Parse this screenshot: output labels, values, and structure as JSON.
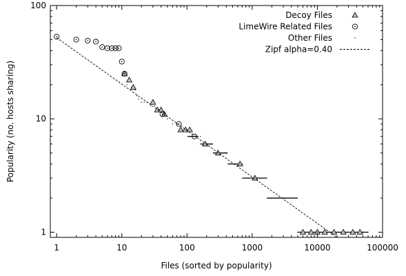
{
  "chart_data": {
    "type": "scatter",
    "xscale": "log",
    "yscale": "log",
    "xlim": [
      0.8,
      100000
    ],
    "ylim": [
      0.9,
      100
    ],
    "xlabel": "Files (sorted by popularity)",
    "ylabel": "Popularity (no. hosts sharing)",
    "x_ticks": [
      {
        "value": 1,
        "label": "1"
      },
      {
        "value": 10,
        "label": "10"
      },
      {
        "value": 100,
        "label": "100"
      },
      {
        "value": 1000,
        "label": "1000"
      },
      {
        "value": 10000,
        "label": "10000"
      },
      {
        "value": 100000,
        "label": "100000"
      }
    ],
    "y_ticks": [
      {
        "value": 1,
        "label": "1"
      },
      {
        "value": 10,
        "label": "10"
      },
      {
        "value": 100,
        "label": "100"
      }
    ],
    "legend_position": "top-right",
    "series": [
      {
        "name": "Decoy Files",
        "marker": "triangle",
        "x": [
          11,
          13,
          15,
          30,
          35,
          40,
          45,
          80,
          95,
          110,
          190,
          300,
          650,
          1100,
          6000,
          8000,
          10000,
          13000,
          18000,
          25000,
          35000,
          45000
        ],
        "y": [
          25,
          22,
          19,
          14,
          12,
          12,
          11,
          8,
          8,
          8,
          6,
          5,
          4,
          3,
          1,
          1,
          1,
          1,
          1,
          1,
          1,
          1
        ]
      },
      {
        "name": "LimeWire Related Files",
        "marker": "circle",
        "x": [
          1,
          2,
          3,
          4,
          5,
          6,
          7,
          8,
          9,
          10,
          11,
          42,
          75,
          130
        ],
        "y": [
          53,
          50,
          49,
          48,
          43,
          42,
          42,
          42,
          42,
          32,
          25,
          11,
          9,
          7
        ]
      },
      {
        "name": "Other Files",
        "marker": "dot",
        "x": [
          12,
          14,
          16,
          17,
          18,
          20,
          22,
          25,
          28,
          32,
          38,
          50,
          60,
          70,
          85,
          100,
          120,
          140,
          160,
          180,
          200,
          230,
          260,
          300,
          350,
          400,
          450,
          500,
          550,
          620,
          700,
          800,
          900,
          1000,
          1200,
          1400,
          1700,
          2000,
          2500,
          3000,
          5000,
          7000,
          10000,
          15000,
          20000,
          30000,
          40000,
          50000,
          60000
        ],
        "y": [
          20,
          19,
          18,
          16,
          15,
          14,
          14,
          14,
          13,
          13,
          12,
          10,
          9,
          9,
          8,
          8,
          7,
          7,
          7,
          6,
          6,
          6,
          5,
          5,
          5,
          5,
          4,
          4,
          4,
          4,
          4,
          3,
          3,
          3,
          3,
          3,
          2,
          2,
          2,
          2,
          1,
          1,
          1,
          1,
          1,
          1,
          1,
          1,
          1
        ]
      },
      {
        "name": "Zipf alpha=0.40",
        "style": "dashed",
        "x": [
          1,
          20000
        ],
        "y": [
          52,
          0.9
        ]
      }
    ]
  }
}
